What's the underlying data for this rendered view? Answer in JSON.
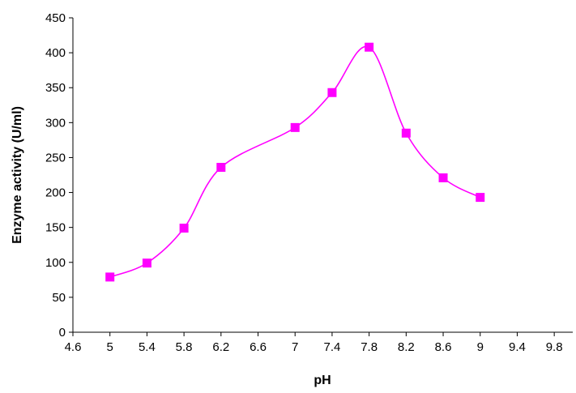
{
  "chart_data": {
    "type": "line",
    "title": "",
    "xlabel": "pH",
    "ylabel": "Enzyme activity (U/ml)",
    "xlim": [
      4.6,
      10.0
    ],
    "ylim": [
      0,
      450
    ],
    "x_ticks": [
      "4.6",
      "5",
      "5.4",
      "5.8",
      "6.2",
      "6.6",
      "7",
      "7.4",
      "7.8",
      "8.2",
      "8.6",
      "9",
      "9.4",
      "9.8"
    ],
    "y_ticks": [
      "0",
      "50",
      "100",
      "150",
      "200",
      "250",
      "300",
      "350",
      "400",
      "450"
    ],
    "grid": false,
    "legend": "none",
    "smoothed": true,
    "series": [
      {
        "color": "#ff00ff",
        "marker": "square",
        "x": [
          5,
          5.4,
          5.8,
          6.2,
          7,
          7.4,
          7.8,
          8.2,
          8.6,
          9
        ],
        "y": [
          79,
          99,
          149,
          236,
          293,
          343,
          408,
          285,
          221,
          193
        ]
      }
    ]
  }
}
